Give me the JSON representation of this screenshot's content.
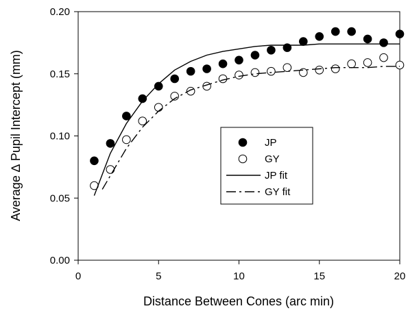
{
  "chart_data": {
    "type": "scatter",
    "xlabel": "Distance Between Cones (arc min)",
    "ylabel": "Average ∆ Pupil Intercept (mm)",
    "xlim": [
      0,
      20
    ],
    "ylim": [
      0,
      0.2
    ],
    "xticks": [
      "0",
      "5",
      "10",
      "15",
      "20"
    ],
    "yticks": [
      "0.00",
      "0.05",
      "0.10",
      "0.15",
      "0.20"
    ],
    "grid": false,
    "legend_position": "center-right",
    "series": [
      {
        "name": "JP",
        "marker": "filled-circle",
        "x": [
          1,
          2,
          3,
          4,
          5,
          6,
          7,
          8,
          9,
          10,
          11,
          12,
          13,
          14,
          15,
          16,
          17,
          18,
          19,
          20
        ],
        "y": [
          0.08,
          0.094,
          0.116,
          0.13,
          0.14,
          0.146,
          0.152,
          0.154,
          0.158,
          0.161,
          0.165,
          0.169,
          0.171,
          0.176,
          0.18,
          0.184,
          0.184,
          0.178,
          0.175,
          0.182
        ]
      },
      {
        "name": "GY",
        "marker": "open-circle",
        "x": [
          1,
          2,
          3,
          4,
          5,
          6,
          7,
          8,
          9,
          10,
          11,
          12,
          13,
          14,
          15,
          16,
          17,
          18,
          19,
          20
        ],
        "y": [
          0.06,
          0.073,
          0.097,
          0.112,
          0.123,
          0.132,
          0.136,
          0.14,
          0.146,
          0.149,
          0.151,
          0.152,
          0.155,
          0.151,
          0.153,
          0.154,
          0.158,
          0.159,
          0.163,
          0.157
        ]
      },
      {
        "name": "JP fit",
        "line": "solid",
        "x": [
          1,
          2,
          3,
          4,
          5,
          6,
          7,
          8,
          9,
          10,
          11,
          12,
          13,
          14,
          15,
          16,
          17,
          18,
          19,
          20
        ],
        "y": [
          0.052,
          0.086,
          0.11,
          0.128,
          0.142,
          0.153,
          0.16,
          0.165,
          0.168,
          0.17,
          0.172,
          0.173,
          0.173,
          0.173,
          0.174,
          0.174,
          0.174,
          0.174,
          0.174,
          0.174
        ]
      },
      {
        "name": "GY fit",
        "line": "dash-dot",
        "x": [
          1.5,
          2,
          3,
          4,
          5,
          6,
          7,
          8,
          9,
          10,
          11,
          12,
          13,
          14,
          15,
          16,
          17,
          18,
          19,
          20
        ],
        "y": [
          0.057,
          0.068,
          0.09,
          0.107,
          0.12,
          0.13,
          0.137,
          0.141,
          0.145,
          0.148,
          0.15,
          0.151,
          0.152,
          0.153,
          0.154,
          0.155,
          0.155,
          0.155,
          0.156,
          0.156
        ]
      }
    ],
    "legend": [
      "JP",
      "GY",
      "JP fit",
      "GY fit"
    ]
  }
}
